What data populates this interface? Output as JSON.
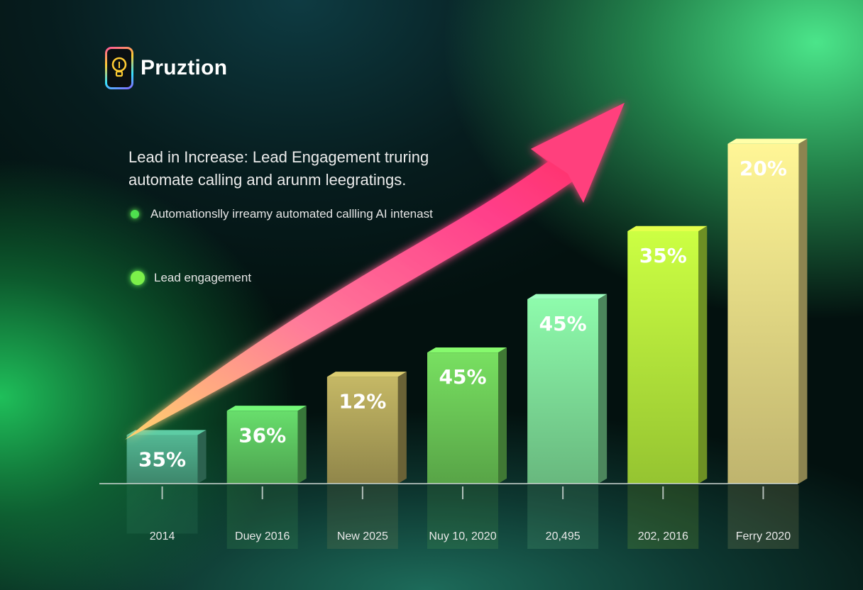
{
  "brand": {
    "name": "Pruztion",
    "icon": "lightbulb-icon"
  },
  "headline": {
    "line1": "Lead in Increase: Lead Engagement truring",
    "line2": "automate calling and arunm leegratings."
  },
  "legend": [
    {
      "text": "Automationslly irreamy automated callling AI intenast",
      "color": "#4ee04e"
    },
    {
      "text": "Lead engagement",
      "color": "#7cf04a"
    }
  ],
  "chart_data": {
    "type": "bar",
    "title": "",
    "xlabel": "",
    "ylabel": "",
    "categories": [
      "2014",
      "Duey 2016",
      "New 2025",
      "Nuy 10, 2020",
      "20,495",
      "202, 2016",
      "Ferry 2020"
    ],
    "values": [
      10,
      15,
      22,
      27,
      38,
      52,
      70
    ],
    "data_labels": [
      "35%",
      "36%",
      "12%",
      "45%",
      "45%",
      "35%",
      "20%"
    ],
    "bar_colors": [
      "#4aa383",
      "#5dc660",
      "#b0a45a",
      "#6bc857",
      "#7fe09a",
      "#b6ef3c",
      "#e9dc86"
    ],
    "ylim": [
      0,
      78
    ],
    "grid": false,
    "trend_arrow": {
      "color": "#ff3f7d",
      "direction": "up-right"
    }
  }
}
